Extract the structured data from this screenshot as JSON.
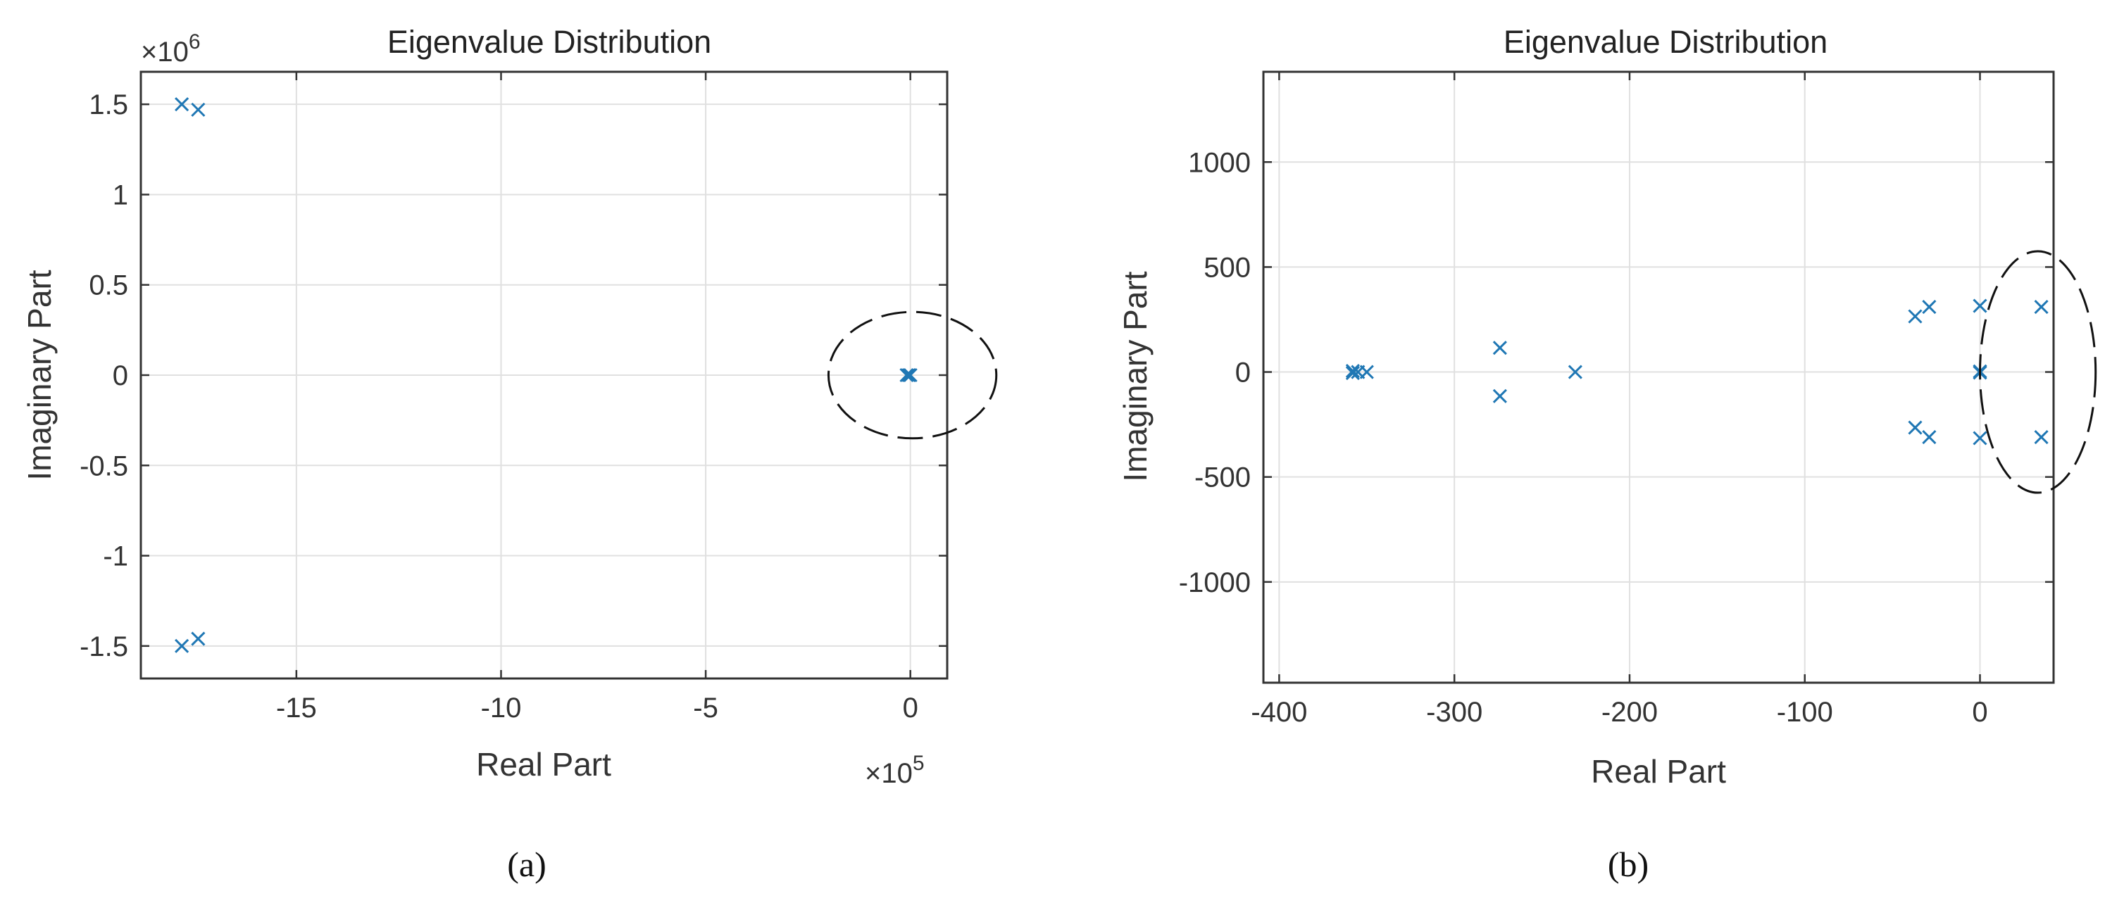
{
  "colors": {
    "marker": "#1f77b4",
    "axis": "#333333",
    "grid": "#e0e0e0",
    "annotation": "#111111"
  },
  "chart_data": [
    {
      "type": "scatter",
      "marker": "x",
      "title": "Eigenvalue Distribution",
      "xlabel": "Real Part",
      "ylabel": "Imaginary Part",
      "caption": "(a)",
      "x_exponent_label": "×10^5",
      "y_exponent_label": "×10^6",
      "xlim": [
        -18.8,
        0.9
      ],
      "ylim": [
        -1.68,
        1.68
      ],
      "xticks": [
        -15,
        -10,
        -5,
        0
      ],
      "xtick_labels": [
        "-15",
        "-10",
        "-5",
        "0"
      ],
      "yticks": [
        -1.5,
        -1,
        -0.5,
        0,
        0.5,
        1,
        1.5
      ],
      "ytick_labels": [
        "-1.5",
        "-1",
        "-0.5",
        "0",
        "0.5",
        "1",
        "1.5"
      ],
      "grid": true,
      "points": [
        {
          "x": -17.8,
          "y": 1.5
        },
        {
          "x": -17.4,
          "y": 1.47
        },
        {
          "x": -17.8,
          "y": -1.5
        },
        {
          "x": -17.4,
          "y": -1.46
        },
        {
          "x": -0.09,
          "y": 0
        },
        {
          "x": 0.0,
          "y": 0
        },
        {
          "x": -0.04,
          "y": 0
        }
      ],
      "annotation": {
        "shape": "dashed-ellipse",
        "cx": 0.05,
        "cy": 0.0,
        "rx": 2.05,
        "ry": 0.35
      }
    },
    {
      "type": "scatter",
      "marker": "x",
      "title": "Eigenvalue Distribution",
      "xlabel": "Real Part",
      "ylabel": "Imaginary Part",
      "caption": "(b)",
      "xlim": [
        -409,
        42
      ],
      "ylim": [
        -1480,
        1430
      ],
      "xticks": [
        -400,
        -300,
        -200,
        -100,
        0
      ],
      "xtick_labels": [
        "-400",
        "-300",
        "-200",
        "-100",
        "0"
      ],
      "yticks": [
        -1000,
        -500,
        0,
        500,
        1000
      ],
      "ytick_labels": [
        "-1000",
        "-500",
        "0",
        "500",
        "1000"
      ],
      "grid": true,
      "points": [
        {
          "x": -358,
          "y": 5
        },
        {
          "x": -358,
          "y": -5
        },
        {
          "x": -355,
          "y": 0
        },
        {
          "x": -350,
          "y": 0
        },
        {
          "x": -274,
          "y": 115
        },
        {
          "x": -274,
          "y": -115
        },
        {
          "x": -231,
          "y": 0
        },
        {
          "x": -37,
          "y": 265
        },
        {
          "x": -37,
          "y": -265
        },
        {
          "x": -29,
          "y": 310
        },
        {
          "x": -29,
          "y": -310
        },
        {
          "x": 0,
          "y": 315
        },
        {
          "x": 0,
          "y": -315
        },
        {
          "x": 0,
          "y": 3
        },
        {
          "x": 0,
          "y": -3
        },
        {
          "x": 35,
          "y": 310
        },
        {
          "x": 35,
          "y": -310
        }
      ],
      "annotation": {
        "shape": "dashed-ellipse",
        "cx": 33,
        "cy": 0,
        "rx": 33,
        "ry": 575
      }
    }
  ]
}
